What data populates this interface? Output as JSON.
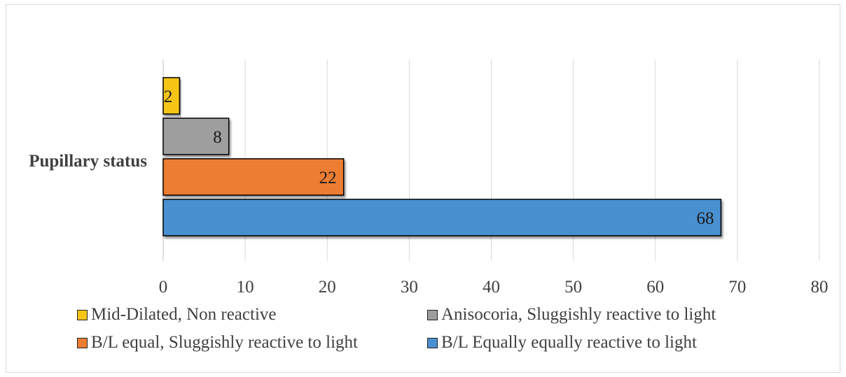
{
  "chart_data": {
    "type": "bar",
    "orientation": "horizontal",
    "categories": [
      "Pupillary status"
    ],
    "series": [
      {
        "name": "Mid-Dilated, Non reactive",
        "values": [
          2
        ],
        "color": "#F5C518"
      },
      {
        "name": "Anisocoria, Sluggishly reactive to light",
        "values": [
          8
        ],
        "color": "#9E9E9E"
      },
      {
        "name": "B/L equal, Sluggishly reactive to light",
        "values": [
          22
        ],
        "color": "#ED7D31"
      },
      {
        "name": "B/L Equally equally reactive to light",
        "values": [
          68
        ],
        "color": "#4A90D0"
      }
    ],
    "xlim": [
      0,
      80
    ],
    "xticks": [
      "0",
      "10",
      "20",
      "30",
      "40",
      "50",
      "60",
      "70",
      "80"
    ],
    "grid": true,
    "legend_position": "bottom"
  }
}
